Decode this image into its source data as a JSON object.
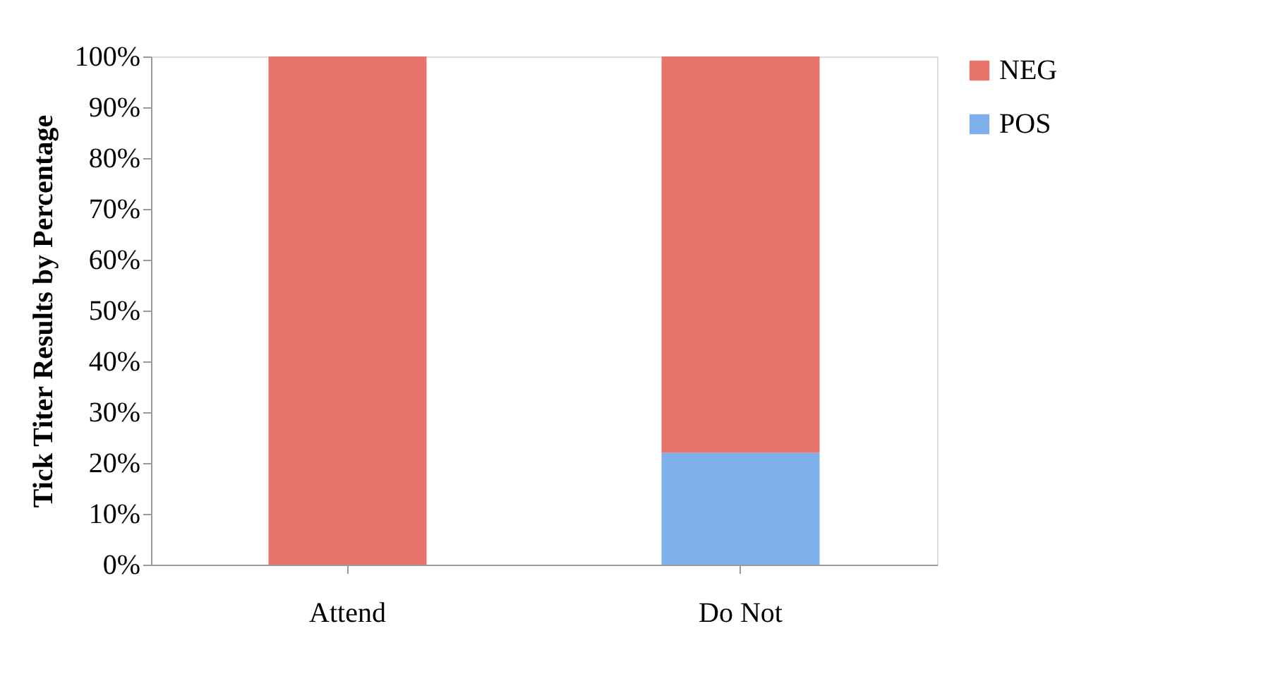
{
  "chart_data": {
    "type": "bar",
    "stacked": true,
    "ylabel": "Tick Titer Results by Percentage",
    "categories": [
      "Attend",
      "Do Not"
    ],
    "series": [
      {
        "name": "POS",
        "color": "#7fb0ec",
        "values": [
          0,
          22
        ]
      },
      {
        "name": "NEG",
        "color": "#e8736b",
        "values": [
          100,
          78
        ]
      }
    ],
    "ylim": [
      0,
      100
    ],
    "yticks": [
      {
        "value": 0,
        "label": "0%"
      },
      {
        "value": 10,
        "label": "10%"
      },
      {
        "value": 20,
        "label": "20%"
      },
      {
        "value": 30,
        "label": "30%"
      },
      {
        "value": 40,
        "label": "40%"
      },
      {
        "value": 50,
        "label": "50%"
      },
      {
        "value": 60,
        "label": "60%"
      },
      {
        "value": 70,
        "label": "70%"
      },
      {
        "value": 80,
        "label": "80%"
      },
      {
        "value": 90,
        "label": "90%"
      },
      {
        "value": 100,
        "label": "100%"
      }
    ],
    "legend": "right",
    "grid": false
  }
}
